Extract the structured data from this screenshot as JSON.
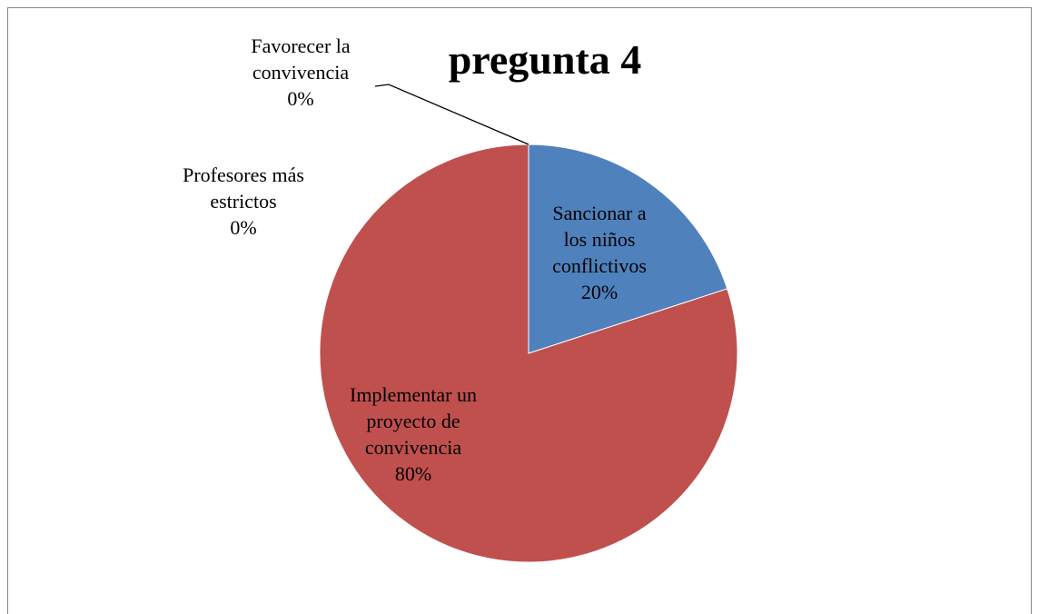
{
  "chart_data": {
    "type": "pie",
    "title": "pregunta 4",
    "categories": [
      "Sancionar a los niños conflictivos",
      "Implementar un proyecto de convivencia",
      "Profesores más estrictos",
      "Favorecer la convivencia"
    ],
    "values": [
      20,
      80,
      0,
      0
    ],
    "value_labels": [
      "20%",
      "80%",
      "0%",
      "0%"
    ],
    "colors": [
      "#4f81bd",
      "#c0504d",
      "#9bbb59",
      "#8064a2"
    ]
  }
}
